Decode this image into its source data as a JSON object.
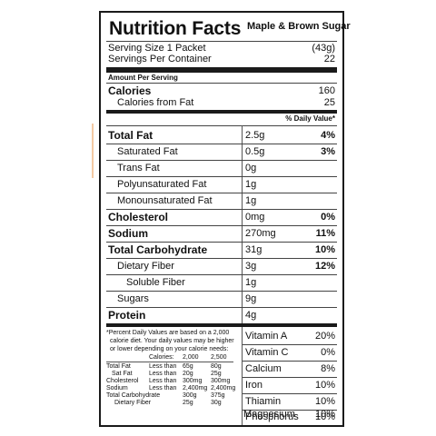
{
  "header": {
    "title": "Nutrition Facts",
    "variant": "Maple & Brown Sugar"
  },
  "serving": {
    "size_label": "Serving Size 1 Packet",
    "size_value": "(43g)",
    "per_container_label": "Servings Per Container",
    "per_container_value": "22"
  },
  "amount_per_serving": "Amount Per Serving",
  "calories": {
    "label": "Calories",
    "value": "160"
  },
  "calories_fat": {
    "label": "Calories from Fat",
    "value": "25"
  },
  "dv_header": "% Daily Value*",
  "nutrients": [
    {
      "name": "Total Fat",
      "amount": "2.5g",
      "dv": "4%"
    },
    {
      "name": "Saturated Fat",
      "amount": "0.5g",
      "dv": "3%"
    },
    {
      "name": "Trans Fat",
      "amount": "0g",
      "dv": ""
    },
    {
      "name": "Polyunsaturated Fat",
      "amount": "1g",
      "dv": ""
    },
    {
      "name": "Monounsaturated Fat",
      "amount": "1g",
      "dv": ""
    },
    {
      "name": "Cholesterol",
      "amount": "0mg",
      "dv": "0%"
    },
    {
      "name": "Sodium",
      "amount": "270mg",
      "dv": "11%"
    },
    {
      "name": "Total Carbohydrate",
      "amount": "31g",
      "dv": "10%"
    },
    {
      "name": "Dietary Fiber",
      "amount": "3g",
      "dv": "12%"
    },
    {
      "name": "Soluble Fiber",
      "amount": "1g",
      "dv": ""
    },
    {
      "name": "Sugars",
      "amount": "9g",
      "dv": ""
    },
    {
      "name": "Protein",
      "amount": "4g",
      "dv": ""
    }
  ],
  "footnote": {
    "lines": [
      "*Percent Daily Values are based on a 2,000",
      "calorie diet. Your daily values may be higher",
      "or lower depending on your calorie needs:"
    ],
    "calories_row": [
      "Calories:",
      "2,000",
      "2,500"
    ],
    "rows": [
      [
        "Total Fat",
        "Less than",
        "65g",
        "80g"
      ],
      [
        "Sat Fat",
        "Less than",
        "20g",
        "25g"
      ],
      [
        "Cholesterol",
        "Less than",
        "300mg",
        "300mg"
      ],
      [
        "Sodium",
        "Less than",
        "2,400mg",
        "2,400mg"
      ],
      [
        "Total Carbohydrate",
        "",
        "300g",
        "375g"
      ],
      [
        "Dietary Fiber",
        "",
        "25g",
        "30g"
      ]
    ]
  },
  "vitamins": [
    {
      "name": "Vitamin A",
      "dv": "20%"
    },
    {
      "name": "Vitamin C",
      "dv": "0%"
    },
    {
      "name": "Calcium",
      "dv": "8%"
    },
    {
      "name": "Iron",
      "dv": "10%"
    },
    {
      "name": "Thiamin",
      "dv": "10%"
    },
    {
      "name": "Phosphorus",
      "dv": "10%"
    },
    {
      "name": "Magnesium",
      "dv": "10%"
    }
  ]
}
